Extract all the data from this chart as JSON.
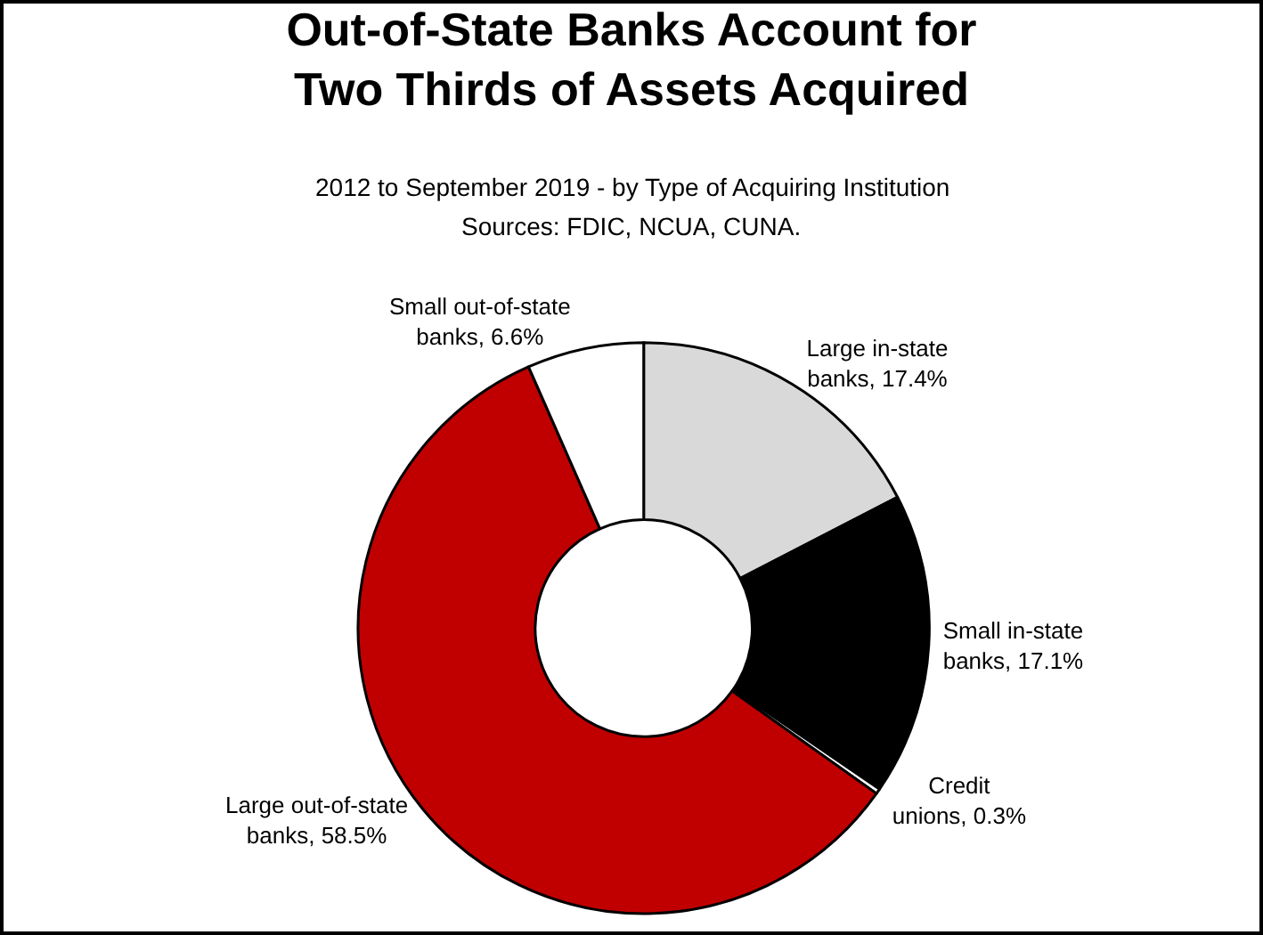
{
  "chart_data": {
    "type": "donut",
    "title": "Out-of-State Banks Account for Two Thirds of Assets Acquired",
    "subtitle": "2012 to September 2019 - by Type of Acquiring Institution",
    "annotations": [
      "Sources: FDIC, NCUA, CUNA."
    ],
    "categories": [
      "Large in-state banks",
      "Small in-state banks",
      "Credit unions",
      "Large out-of-state banks",
      "Small out-of-state banks"
    ],
    "values": [
      17.4,
      17.1,
      0.3,
      58.5,
      6.6
    ],
    "value_labels": [
      "17.4%",
      "17.1%",
      "0.3%",
      "58.5%",
      "6.6%"
    ],
    "colors": [
      "#d9d9d9",
      "#000000",
      "#ffffff",
      "#c00000",
      "#ffffff"
    ],
    "legend": false
  }
}
